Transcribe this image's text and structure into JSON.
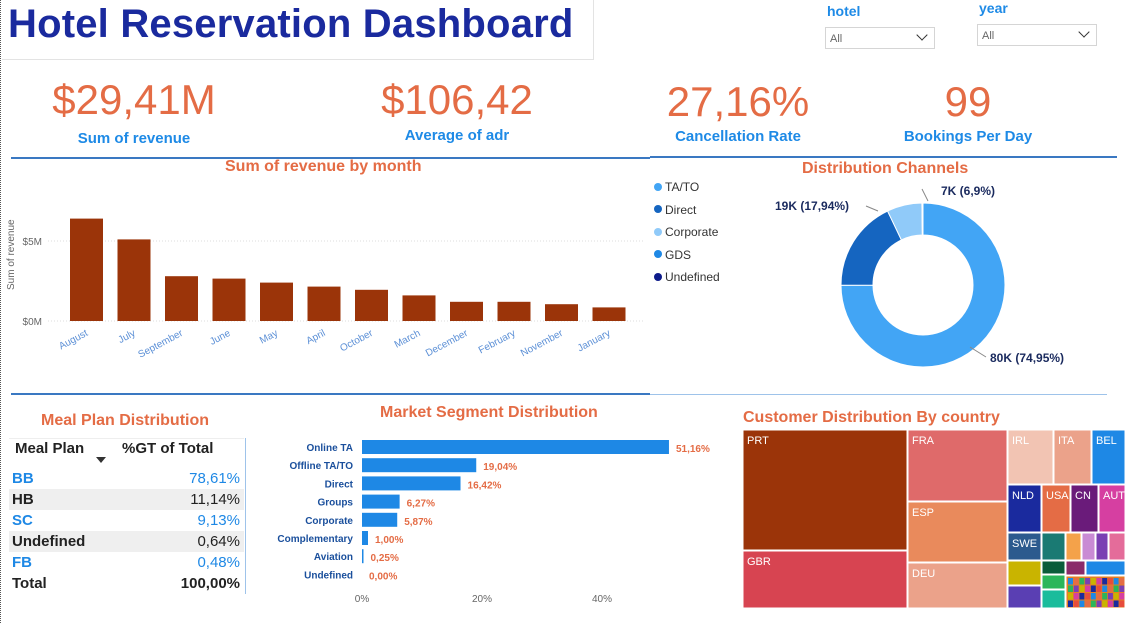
{
  "title": "Hotel Reservation Dashboard",
  "filters": {
    "hotel": {
      "label": "hotel",
      "value": "All"
    },
    "year": {
      "label": "year",
      "value": "All"
    }
  },
  "kpis": [
    {
      "value": "$29,41M",
      "label": "Sum of revenue"
    },
    {
      "value": "$106,42",
      "label": "Average of adr"
    },
    {
      "value": "27,16%",
      "label": "Cancellation Rate"
    },
    {
      "value": "99",
      "label": "Bookings Per Day"
    }
  ],
  "revenue_chart": {
    "title": "Sum of revenue by month",
    "ylabel": "Sum of revenue",
    "yticks": [
      "$5M",
      "$0M"
    ]
  },
  "channels": {
    "title": "Distribution Channels",
    "legend": [
      {
        "name": "TA/TO",
        "color": "#42a5f5"
      },
      {
        "name": "Direct",
        "color": "#1565c0"
      },
      {
        "name": "Corporate",
        "color": "#90caf9"
      },
      {
        "name": "GDS",
        "color": "#1e88e5"
      },
      {
        "name": "Undefined",
        "color": "#0d1b8a"
      }
    ],
    "labels": {
      "tato": "80K (74,95%)",
      "direct": "19K (17,94%)",
      "corporate": "7K (6,9%)"
    }
  },
  "meal_plan": {
    "title": "Meal Plan Distribution",
    "headers": {
      "plan": "Meal Plan",
      "pct": "%GT of Total"
    },
    "rows": [
      {
        "plan": "BB",
        "pct": "78,61%",
        "highlight": true
      },
      {
        "plan": "HB",
        "pct": "11,14%",
        "highlight": false
      },
      {
        "plan": "SC",
        "pct": "9,13%",
        "highlight": true
      },
      {
        "plan": "Undefined",
        "pct": "0,64%",
        "highlight": false
      },
      {
        "plan": "FB",
        "pct": "0,48%",
        "highlight": true
      }
    ],
    "total": {
      "plan": "Total",
      "pct": "100,00%"
    }
  },
  "market_segment": {
    "title": "Market Segment Distribution",
    "xticks": [
      "0%",
      "20%",
      "40%"
    ]
  },
  "country": {
    "title": "Customer Distribution By country"
  },
  "chart_data": [
    {
      "type": "bar",
      "title": "Sum of revenue by month",
      "ylabel": "Sum of revenue",
      "categories": [
        "August",
        "July",
        "September",
        "June",
        "May",
        "April",
        "October",
        "March",
        "December",
        "February",
        "November",
        "January"
      ],
      "values": [
        6.4,
        5.1,
        2.8,
        2.65,
        2.4,
        2.15,
        1.95,
        1.6,
        1.2,
        1.2,
        1.05,
        0.85
      ],
      "unit": "$M",
      "ylim": [
        0,
        7.5
      ],
      "color": "#9b3409"
    },
    {
      "type": "pie",
      "title": "Distribution Channels",
      "categories": [
        "TA/TO",
        "Direct",
        "Corporate",
        "GDS",
        "Undefined"
      ],
      "values": [
        74.95,
        17.94,
        6.9,
        0.16,
        0.05
      ],
      "colors": [
        "#42a5f5",
        "#1565c0",
        "#90caf9",
        "#1e88e5",
        "#0d1b8a"
      ]
    },
    {
      "type": "bar",
      "title": "Market Segment Distribution",
      "categories": [
        "Online TA",
        "Offline TA/TO",
        "Direct",
        "Groups",
        "Corporate",
        "Complementary",
        "Aviation",
        "Undefined"
      ],
      "values": [
        51.16,
        19.04,
        16.42,
        6.27,
        5.87,
        1.0,
        0.25,
        0.0
      ],
      "value_labels": [
        "51,16%",
        "19,04%",
        "16,42%",
        "6,27%",
        "5,87%",
        "1,00%",
        "0,25%",
        "0,00%"
      ],
      "xlim": [
        0,
        52
      ],
      "color": "#1e88e5"
    },
    {
      "type": "heatmap",
      "title": "Customer Distribution By country",
      "categories": [
        "PRT",
        "GBR",
        "FRA",
        "ESP",
        "DEU",
        "IRL",
        "ITA",
        "BEL",
        "NLD",
        "USA",
        "CN",
        "AUT",
        "SWE"
      ]
    }
  ]
}
